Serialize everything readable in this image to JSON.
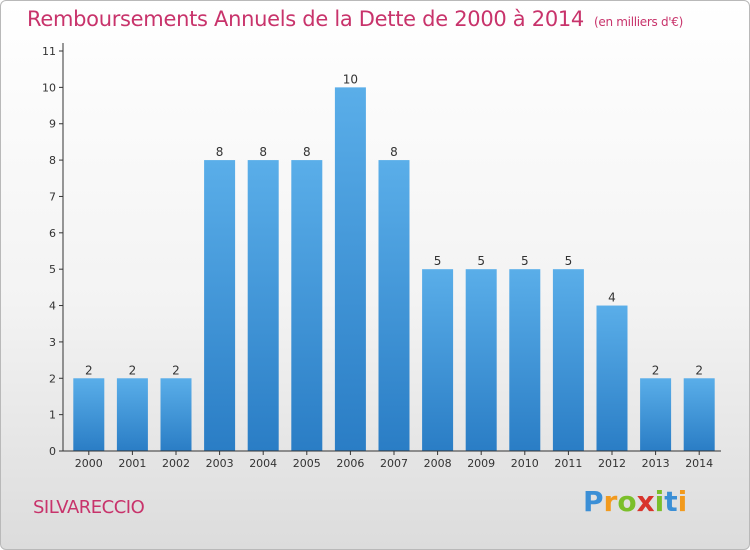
{
  "header": {
    "title": "Remboursements Annuels de la Dette de 2000 à 2014",
    "subtitle": "(en milliers d'€)"
  },
  "footer": {
    "commune": "SILVARECCIO",
    "logo": "Proxiti"
  },
  "colors": {
    "title": "#c8336b",
    "bar_top": "#5aaee9",
    "bar_bottom": "#2a7dc5",
    "axis": "#333333"
  },
  "chart_data": {
    "type": "bar",
    "title": "Remboursements Annuels de la Dette de 2000 à 2014",
    "xlabel": "",
    "ylabel": "",
    "categories": [
      "2000",
      "2001",
      "2002",
      "2003",
      "2004",
      "2005",
      "2006",
      "2007",
      "2008",
      "2009",
      "2010",
      "2011",
      "2012",
      "2013",
      "2014"
    ],
    "values": [
      2,
      2,
      2,
      8,
      8,
      8,
      10,
      8,
      5,
      5,
      5,
      5,
      4,
      2,
      2
    ],
    "ylim": [
      0,
      11
    ],
    "yticks": [
      0,
      1,
      2,
      3,
      4,
      5,
      6,
      7,
      8,
      9,
      10,
      11
    ],
    "grid": false,
    "legend": "none"
  }
}
